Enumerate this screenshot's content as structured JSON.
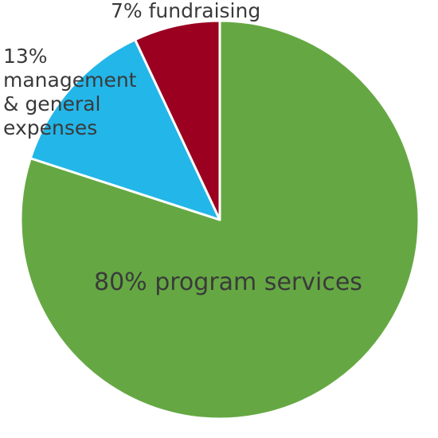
{
  "chart_data": {
    "type": "pie",
    "series": [
      {
        "slices": [
          {
            "label": "program services",
            "value": 80,
            "color": "#65a843",
            "display": [
              "80% program services"
            ]
          },
          {
            "label": "management & general expenses",
            "value": 13,
            "color": "#23b6e9",
            "display": [
              "13%",
              "management",
              "& general",
              "expenses"
            ]
          },
          {
            "label": "fundraising",
            "value": 7,
            "color": "#9b0021",
            "display": [
              "7% fundraising"
            ]
          }
        ]
      }
    ],
    "start": "12 o'clock",
    "direction": "clockwise",
    "legend": "none",
    "labels": "direct"
  }
}
